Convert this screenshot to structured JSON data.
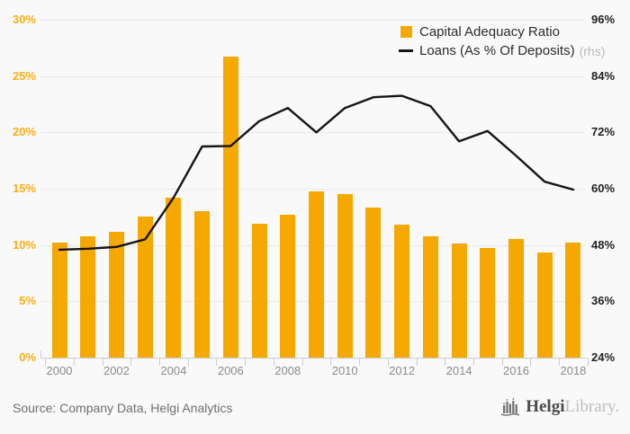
{
  "chart_data": {
    "type": "bar",
    "combo": "bar+line",
    "title": "",
    "categories": [
      "2000",
      "2001",
      "2002",
      "2003",
      "2004",
      "2005",
      "2006",
      "2007",
      "2008",
      "2009",
      "2010",
      "2011",
      "2012",
      "2013",
      "2014",
      "2015",
      "2016",
      "2017",
      "2018"
    ],
    "series": [
      {
        "name": "Capital Adequacy Ratio",
        "kind": "bar",
        "axis": "left",
        "values": [
          10.2,
          10.8,
          11.2,
          12.5,
          14.2,
          13.0,
          26.7,
          11.9,
          12.7,
          14.8,
          14.5,
          13.3,
          11.8,
          10.8,
          10.1,
          9.7,
          10.5,
          9.3,
          10.2
        ]
      },
      {
        "name": "Loans (As % Of Deposits)",
        "kind": "line",
        "axis": "right",
        "note": "(rhs)",
        "values": [
          47.0,
          47.2,
          47.6,
          49.2,
          58.1,
          69.0,
          69.1,
          74.4,
          77.2,
          72.0,
          77.2,
          79.5,
          79.8,
          77.6,
          70.1,
          72.3,
          67.0,
          61.5,
          59.8
        ]
      }
    ],
    "left_axis": {
      "min": 0,
      "max": 30,
      "tick_values": [
        30,
        25,
        20,
        15,
        10,
        5,
        0
      ],
      "tick_labels": [
        "30%",
        "25%",
        "20%",
        "15%",
        "10%",
        "5%",
        "0%"
      ]
    },
    "right_axis": {
      "min": 24,
      "max": 96,
      "tick_values": [
        96,
        84,
        72,
        60,
        48,
        36,
        24
      ],
      "tick_labels": [
        "96%",
        "84%",
        "72%",
        "60%",
        "48%",
        "36%",
        "24%"
      ]
    },
    "x_axis": {
      "label_every": 2,
      "visible_labels": [
        "2000",
        "2002",
        "2004",
        "2006",
        "2008",
        "2010",
        "2012",
        "2014",
        "2016",
        "2018"
      ]
    },
    "grid": true,
    "legend_position": "top-right"
  },
  "legend": {
    "items": [
      {
        "label": "Capital Adequacy Ratio",
        "suffix": ""
      },
      {
        "label": "Loans (As % Of Deposits)",
        "suffix": "(rhs)"
      }
    ]
  },
  "footer": {
    "source": "Source: Company Data, Helgi Analytics",
    "logo": {
      "brand": "Helgi",
      "brand2": "Library."
    }
  },
  "colors": {
    "bar": "#F5A800",
    "line": "#151515",
    "left_axis_labels": "#FBAE17",
    "right_axis_labels": "#222222",
    "x_axis_labels": "#8b8b8b",
    "grid": "#e9e9e9",
    "axis_line": "#c6cdd7",
    "background": "#f9f9f9",
    "legend_text": "#2b2b2b",
    "rhs_note": "#b9b9b9",
    "source_text": "#6e6e6e",
    "logo_dark": "#4a4a4a",
    "logo_light": "#bdbdbd",
    "logo_icon": "#6e6e6e"
  }
}
